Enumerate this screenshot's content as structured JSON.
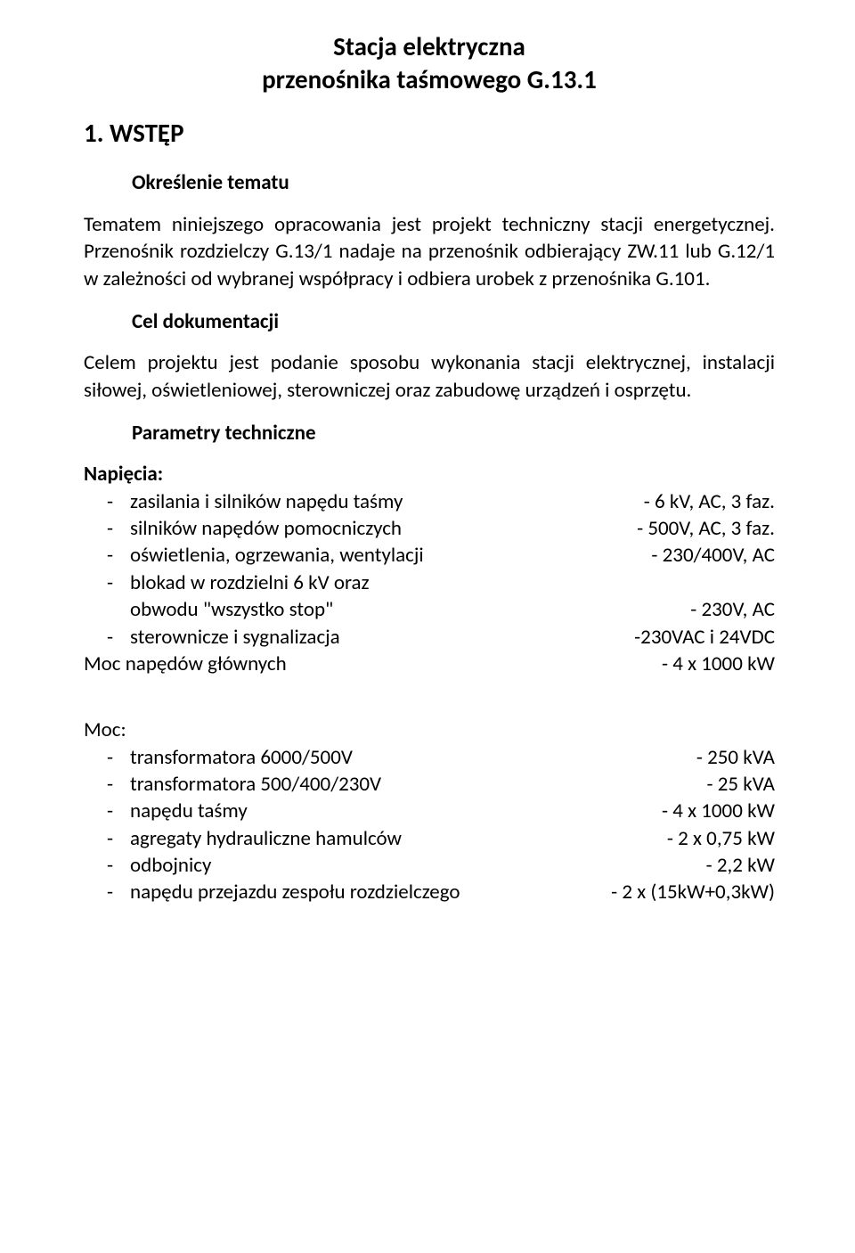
{
  "title_line1": "Stacja elektryczna",
  "title_line2": "przenośnika taśmowego G.13.1",
  "section_number": "1. WSTĘP",
  "sub1": "Określenie tematu",
  "p1": "Tematem niniejszego opracowania jest projekt techniczny stacji energetycznej. Przenośnik rozdzielczy G.13/1 nadaje na przenośnik odbierający ZW.11 lub G.12/1 w zależności od wybranej współpracy i odbiera urobek z przenośnika G.101.",
  "sub2": "Cel dokumentacji",
  "p2": "Celem projektu jest podanie sposobu wykonania stacji elektrycznej, instalacji siłowej, oświetleniowej, sterowniczej oraz zabudowę urządzeń i osprzętu.",
  "sub3": "Parametry techniczne",
  "nap_header": "Napięcia:",
  "nap": [
    {
      "label": "zasilania i silników napędu taśmy",
      "value": "- 6 kV, AC, 3 faz."
    },
    {
      "label": "silników napędów pomocniczych",
      "value": "- 500V, AC, 3 faz."
    },
    {
      "label": "oświetlenia, ogrzewania, wentylacji",
      "value": "- 230/400V, AC"
    },
    {
      "label": "blokad w rozdzielni 6 kV oraz",
      "value": ""
    }
  ],
  "nap_cont_label": "obwodu \"wszystko stop\"",
  "nap_cont_value": "- 230V, AC",
  "nap5": {
    "label": "sterownicze i sygnalizacja",
    "value": "-230VAC i 24VDC"
  },
  "moc_gl_label": "Moc napędów głównych",
  "moc_gl_value": "- 4  x  1000 kW",
  "moc_header": "Moc:",
  "moc": [
    {
      "label": "transformatora 6000/500V",
      "value": "- 250 kVA"
    },
    {
      "label": "transformatora 500/400/230V",
      "value": "- 25 kVA"
    },
    {
      "label": "napędu taśmy",
      "value": "- 4 x 1000 kW"
    },
    {
      "label": "agregaty hydrauliczne hamulców",
      "value": "- 2 x 0,75 kW"
    },
    {
      "label": "odbojnicy",
      "value": "- 2,2 kW"
    },
    {
      "label": "napędu przejazdu zespołu rozdzielczego",
      "value": "- 2 x (15kW+0,3kW)"
    }
  ]
}
